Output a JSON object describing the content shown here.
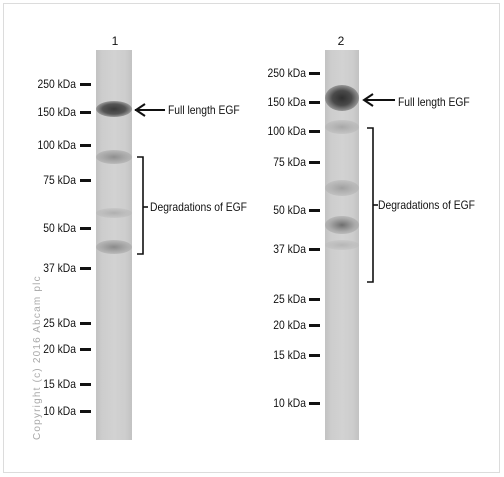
{
  "colors": {
    "band_dark": "#3f3f3f",
    "lane_bg": "#cfcfcf",
    "text": "#111111",
    "watermark": "#a9a9a9"
  },
  "copyright": "Copyright (c) 2016 Abcam plc",
  "blots": [
    {
      "lane_label": "1",
      "markers": [
        "250 kDa",
        "150 kDa",
        "100 kDa",
        "75 kDa",
        "50 kDa",
        "37 kDa",
        "25 kDa",
        "20 kDa",
        "15 kDa",
        "10 kDa"
      ],
      "full_length_label": "Full length EGF",
      "degradation_label": "Degradations of EGF"
    },
    {
      "lane_label": "2",
      "markers": [
        "250 kDa",
        "150 kDa",
        "100 kDa",
        "75 kDa",
        "50 kDa",
        "37 kDa",
        "25 kDa",
        "20 kDa",
        "15 kDa",
        "10 kDa"
      ],
      "full_length_label": "Full length EGF",
      "degradation_label": "Degradations of EGF"
    }
  ]
}
